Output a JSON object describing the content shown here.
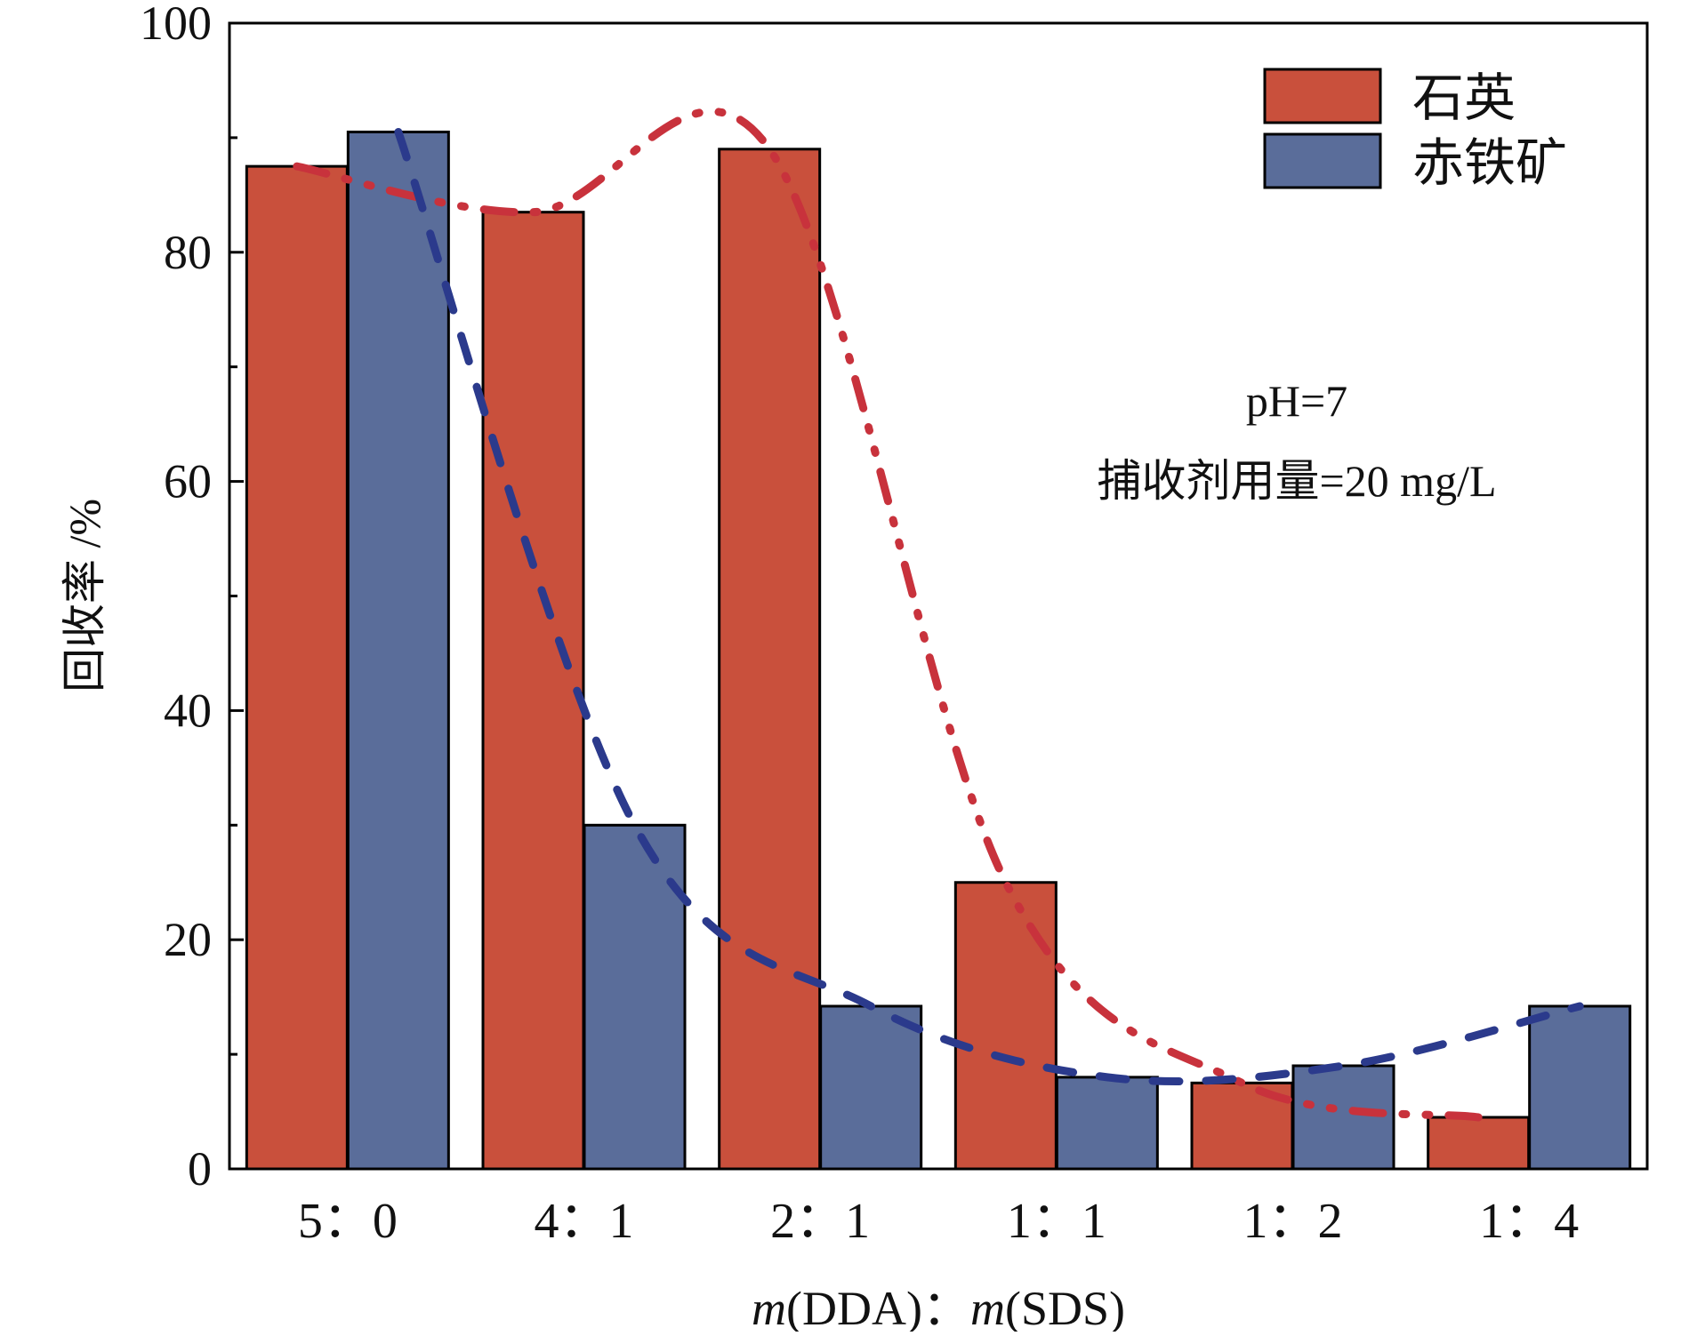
{
  "chart_data": {
    "type": "bar",
    "categories": [
      "5：0",
      "4：1",
      "2：1",
      "1：1",
      "1：2",
      "1：4"
    ],
    "series": [
      {
        "name": "石英",
        "color": "#c9503c",
        "values": [
          87.5,
          83.5,
          89.0,
          25.0,
          7.5,
          4.5
        ]
      },
      {
        "name": "赤铁矿",
        "color": "#5a6d9a",
        "values": [
          90.5,
          30.0,
          14.2,
          8.0,
          9.0,
          14.2
        ]
      }
    ],
    "trend_lines": [
      {
        "series": "石英",
        "color": "#c8323c",
        "style": "dash-dot-dot"
      },
      {
        "series": "赤铁矿",
        "color": "#2b3a8c",
        "style": "dash"
      }
    ],
    "xlabel": {
      "var1": "m",
      "arg1": "(DDA)",
      "sep": "：",
      "var2": "m",
      "arg2": "(SDS)"
    },
    "ylabel": "回收率 /%",
    "ylim": [
      0,
      100
    ],
    "yticks": [
      0,
      20,
      40,
      60,
      80,
      100
    ],
    "legend_position": "top-right",
    "annotations": [
      "pH=7",
      "捕收剂用量=20 mg/L"
    ]
  }
}
